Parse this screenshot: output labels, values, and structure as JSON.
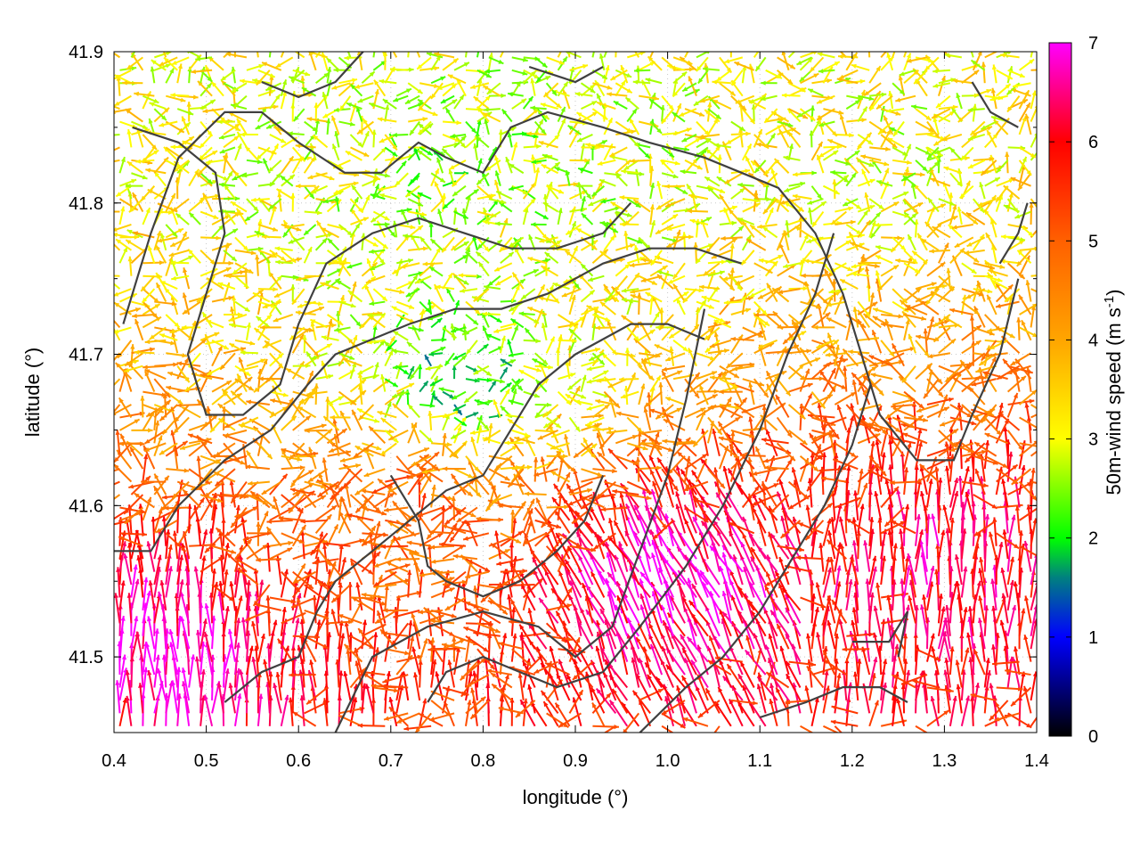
{
  "chart_data": {
    "type": "vector-field",
    "xlabel": "longitude (°)",
    "ylabel": "latitude (°)",
    "colorbar_label": "50m-wind speed (m s-1)",
    "colorbar_label_parts": {
      "main": "50m-wind speed (m s",
      "sup": "-1",
      "close": ")"
    },
    "xlim": [
      0.4,
      1.4
    ],
    "ylim": [
      41.45,
      41.9
    ],
    "xticks": [
      "0.4",
      "0.5",
      "0.6",
      "0.7",
      "0.8",
      "0.9",
      "1.0",
      "1.1",
      "1.2",
      "1.3",
      "1.4"
    ],
    "yticks": [
      "41.5",
      "41.6",
      "41.7",
      "41.8",
      "41.9"
    ],
    "colorbar_range": [
      0,
      7
    ],
    "colorbar_ticks": [
      "0",
      "1",
      "2",
      "3",
      "4",
      "5",
      "6",
      "7"
    ],
    "colorbar_stops": [
      {
        "value": 0,
        "color": "#000000"
      },
      {
        "value": 1,
        "color": "#0000ff"
      },
      {
        "value": 1.6,
        "color": "#008080"
      },
      {
        "value": 2,
        "color": "#00ff00"
      },
      {
        "value": 3,
        "color": "#ffff00"
      },
      {
        "value": 4,
        "color": "#ffa500"
      },
      {
        "value": 5,
        "color": "#ff6000"
      },
      {
        "value": 6,
        "color": "#ff0000"
      },
      {
        "value": 6.5,
        "color": "#ff0080"
      },
      {
        "value": 7,
        "color": "#ff00ff"
      }
    ],
    "grid": true,
    "contour_color": "#404040",
    "contours": [
      [
        [
          0.41,
          41.72
        ],
        [
          0.44,
          41.78
        ],
        [
          0.47,
          41.83
        ],
        [
          0.52,
          41.86
        ],
        [
          0.56,
          41.86
        ],
        [
          0.6,
          41.84
        ],
        [
          0.65,
          41.82
        ],
        [
          0.69,
          41.82
        ],
        [
          0.73,
          41.84
        ],
        [
          0.76,
          41.83
        ],
        [
          0.8,
          41.82
        ],
        [
          0.83,
          41.85
        ],
        [
          0.87,
          41.86
        ],
        [
          0.93,
          41.85
        ],
        [
          0.98,
          41.84
        ],
        [
          1.04,
          41.83
        ],
        [
          1.08,
          41.82
        ],
        [
          1.12,
          41.81
        ],
        [
          1.16,
          41.78
        ],
        [
          1.19,
          41.74
        ],
        [
          1.21,
          41.7
        ],
        [
          1.23,
          41.66
        ],
        [
          1.27,
          41.63
        ],
        [
          1.31,
          41.63
        ],
        [
          1.33,
          41.66
        ],
        [
          1.36,
          41.7
        ],
        [
          1.38,
          41.75
        ]
      ],
      [
        [
          0.42,
          41.85
        ],
        [
          0.47,
          41.84
        ],
        [
          0.51,
          41.82
        ],
        [
          0.52,
          41.78
        ],
        [
          0.5,
          41.74
        ],
        [
          0.48,
          41.7
        ],
        [
          0.5,
          41.66
        ],
        [
          0.54,
          41.66
        ],
        [
          0.58,
          41.68
        ],
        [
          0.6,
          41.72
        ],
        [
          0.63,
          41.76
        ],
        [
          0.68,
          41.78
        ],
        [
          0.73,
          41.79
        ],
        [
          0.78,
          41.78
        ],
        [
          0.83,
          41.77
        ],
        [
          0.88,
          41.77
        ],
        [
          0.93,
          41.78
        ],
        [
          0.96,
          41.8
        ]
      ],
      [
        [
          0.4,
          41.57
        ],
        [
          0.44,
          41.57
        ],
        [
          0.47,
          41.6
        ],
        [
          0.52,
          41.63
        ],
        [
          0.57,
          41.65
        ],
        [
          0.61,
          41.68
        ],
        [
          0.64,
          41.7
        ],
        [
          0.68,
          41.71
        ],
        [
          0.72,
          41.72
        ],
        [
          0.77,
          41.73
        ],
        [
          0.82,
          41.73
        ],
        [
          0.87,
          41.74
        ],
        [
          0.93,
          41.76
        ],
        [
          0.98,
          41.77
        ],
        [
          1.03,
          41.77
        ],
        [
          1.08,
          41.76
        ]
      ],
      [
        [
          0.52,
          41.47
        ],
        [
          0.56,
          41.49
        ],
        [
          0.6,
          41.5
        ],
        [
          0.62,
          41.53
        ],
        [
          0.64,
          41.55
        ],
        [
          0.68,
          41.57
        ],
        [
          0.72,
          41.59
        ],
        [
          0.76,
          41.61
        ],
        [
          0.8,
          41.62
        ],
        [
          0.83,
          41.65
        ],
        [
          0.86,
          41.68
        ],
        [
          0.9,
          41.7
        ],
        [
          0.93,
          41.71
        ],
        [
          0.96,
          41.72
        ],
        [
          1.0,
          41.72
        ],
        [
          1.04,
          41.71
        ]
      ],
      [
        [
          0.7,
          41.62
        ],
        [
          0.73,
          41.59
        ],
        [
          0.74,
          41.56
        ],
        [
          0.76,
          41.55
        ],
        [
          0.8,
          41.54
        ],
        [
          0.84,
          41.55
        ],
        [
          0.88,
          41.57
        ],
        [
          0.91,
          41.59
        ],
        [
          0.93,
          41.62
        ]
      ],
      [
        [
          0.64,
          41.45
        ],
        [
          0.68,
          41.5
        ],
        [
          0.74,
          41.52
        ],
        [
          0.8,
          41.53
        ],
        [
          0.86,
          41.52
        ],
        [
          0.9,
          41.5
        ],
        [
          0.94,
          41.52
        ],
        [
          0.97,
          41.57
        ],
        [
          1.0,
          41.62
        ],
        [
          1.02,
          41.67
        ],
        [
          1.04,
          41.73
        ]
      ],
      [
        [
          0.74,
          41.47
        ],
        [
          0.76,
          41.49
        ],
        [
          0.8,
          41.5
        ],
        [
          0.84,
          41.49
        ],
        [
          0.88,
          41.48
        ],
        [
          0.93,
          41.49
        ],
        [
          0.97,
          41.52
        ],
        [
          1.02,
          41.56
        ],
        [
          1.06,
          41.6
        ],
        [
          1.1,
          41.65
        ],
        [
          1.13,
          41.7
        ],
        [
          1.16,
          41.74
        ],
        [
          1.18,
          41.78
        ]
      ],
      [
        [
          0.97,
          41.45
        ],
        [
          1.02,
          41.48
        ],
        [
          1.06,
          41.5
        ],
        [
          1.1,
          41.53
        ],
        [
          1.14,
          41.57
        ],
        [
          1.17,
          41.6
        ],
        [
          1.2,
          41.64
        ],
        [
          1.22,
          41.68
        ]
      ],
      [
        [
          1.1,
          41.46
        ],
        [
          1.15,
          41.47
        ],
        [
          1.19,
          41.48
        ],
        [
          1.23,
          41.48
        ],
        [
          1.26,
          41.47
        ]
      ],
      [
        [
          1.2,
          41.51
        ],
        [
          1.24,
          41.51
        ],
        [
          1.26,
          41.53
        ],
        [
          1.25,
          41.5
        ]
      ],
      [
        [
          0.56,
          41.88
        ],
        [
          0.6,
          41.87
        ],
        [
          0.64,
          41.88
        ],
        [
          0.67,
          41.9
        ]
      ],
      [
        [
          0.85,
          41.89
        ],
        [
          0.9,
          41.88
        ],
        [
          0.93,
          41.89
        ]
      ],
      [
        [
          1.33,
          41.88
        ],
        [
          1.35,
          41.86
        ],
        [
          1.38,
          41.85
        ]
      ],
      [
        [
          1.36,
          41.76
        ],
        [
          1.38,
          41.78
        ],
        [
          1.39,
          41.8
        ]
      ]
    ],
    "field_note_speed_regions": [
      {
        "center": [
          0.6,
          41.84
        ],
        "speed": 3.0
      },
      {
        "center": [
          0.75,
          41.82
        ],
        "speed": 2.5
      },
      {
        "center": [
          0.78,
          41.68
        ],
        "speed": 1.8
      },
      {
        "center": [
          0.9,
          41.82
        ],
        "speed": 2.8
      },
      {
        "center": [
          1.25,
          41.83
        ],
        "speed": 3.0
      },
      {
        "center": [
          1.0,
          41.55
        ],
        "speed": 7.0
      },
      {
        "center": [
          0.45,
          41.5
        ],
        "speed": 7.0
      },
      {
        "center": [
          1.3,
          41.55
        ],
        "speed": 6.3
      },
      {
        "center": [
          0.7,
          41.6
        ],
        "speed": 5.0
      }
    ]
  }
}
